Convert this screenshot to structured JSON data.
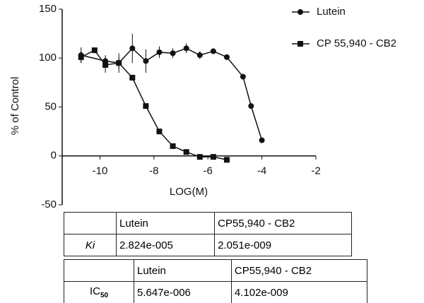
{
  "chart_data": {
    "type": "scatter-line",
    "xlabel": "LOG(M)",
    "ylabel": "% of Control",
    "xlim": [
      -11.4,
      -2
    ],
    "xticks": [
      -10,
      -8,
      -6,
      -4,
      -2
    ],
    "ylim": [
      -50,
      150
    ],
    "yticks": [
      -50,
      0,
      50,
      100,
      150
    ],
    "series": [
      {
        "name": "Lutein",
        "color": "#111111",
        "marker": "circle",
        "x": [
          -10.7,
          -9.8,
          -9.3,
          -8.8,
          -8.3,
          -7.8,
          -7.3,
          -6.8,
          -6.3,
          -5.8,
          -5.3,
          -4.7,
          -4.4,
          -4.0
        ],
        "values": [
          103,
          97,
          95,
          110,
          97,
          106,
          105,
          110,
          103,
          107,
          101,
          81,
          51,
          16
        ],
        "errors": [
          8,
          6,
          10,
          15,
          12,
          6,
          5,
          5,
          4,
          0,
          0,
          0,
          0,
          0
        ]
      },
      {
        "name": "CP 55,940 - CB2",
        "color": "#111111",
        "marker": "square",
        "x": [
          -10.7,
          -10.2,
          -9.8,
          -9.3,
          -8.8,
          -8.3,
          -7.8,
          -7.3,
          -6.8,
          -6.3,
          -5.8,
          -5.3
        ],
        "values": [
          101,
          108,
          93,
          95,
          80,
          51,
          25,
          10,
          4,
          -1,
          -1,
          -4
        ],
        "errors": [
          6,
          0,
          8,
          6,
          0,
          0,
          0,
          0,
          0,
          0,
          0,
          0
        ]
      }
    ]
  },
  "tables": [
    {
      "header": [
        "Lutein",
        "CP55,940 - CB2"
      ],
      "row_label": "Ki",
      "row": [
        "2.824e-005",
        "2.051e-009"
      ]
    },
    {
      "header": [
        "Lutein",
        "CP55,940 - CB2"
      ],
      "row_label": "IC",
      "row_label_sub": "50",
      "row": [
        "5.647e-006",
        "4.102e-009"
      ]
    }
  ]
}
